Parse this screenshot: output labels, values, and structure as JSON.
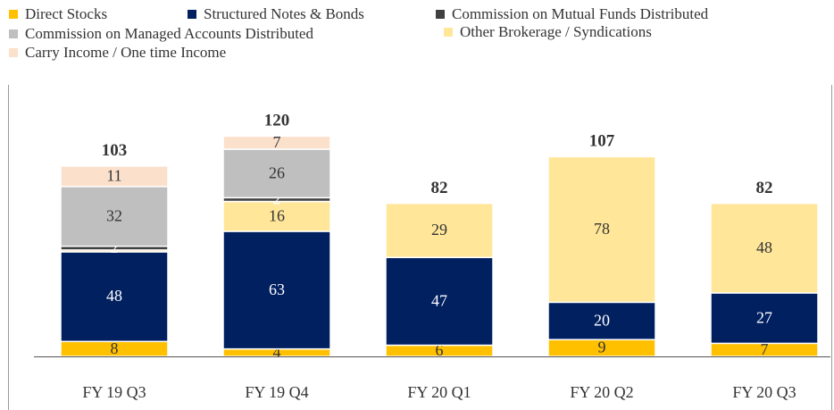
{
  "chart_data": {
    "type": "stacked_bar",
    "categories": [
      "FY 19 Q3",
      "FY 19 Q4",
      "FY 20 Q1",
      "FY 20 Q2",
      "FY 20 Q3"
    ],
    "series": [
      {
        "name": "Direct Stocks",
        "color": "#ffc000",
        "values": [
          8,
          4,
          6,
          9,
          7
        ]
      },
      {
        "name": "Structured Notes & Bonds",
        "color": "#002060",
        "values": [
          48,
          63,
          47,
          20,
          27
        ]
      },
      {
        "name": "Other Brokerage / Syndications",
        "color": "#ffe699",
        "values": [
          1,
          16,
          29,
          78,
          48
        ]
      },
      {
        "name": "Commission on Mutual Funds Distributed",
        "color": "#404040",
        "values": [
          2,
          2,
          0,
          0,
          0
        ]
      },
      {
        "name": "Commission on Managed Accounts Distributed",
        "color": "#bfbfbf",
        "values": [
          32,
          26,
          0,
          0,
          0
        ]
      },
      {
        "name": "Carry Income / One time Income",
        "color": "#fbe0cc",
        "values": [
          11,
          7,
          0,
          0,
          0
        ]
      }
    ],
    "totals": [
      103,
      120,
      82,
      107,
      82
    ]
  }
}
